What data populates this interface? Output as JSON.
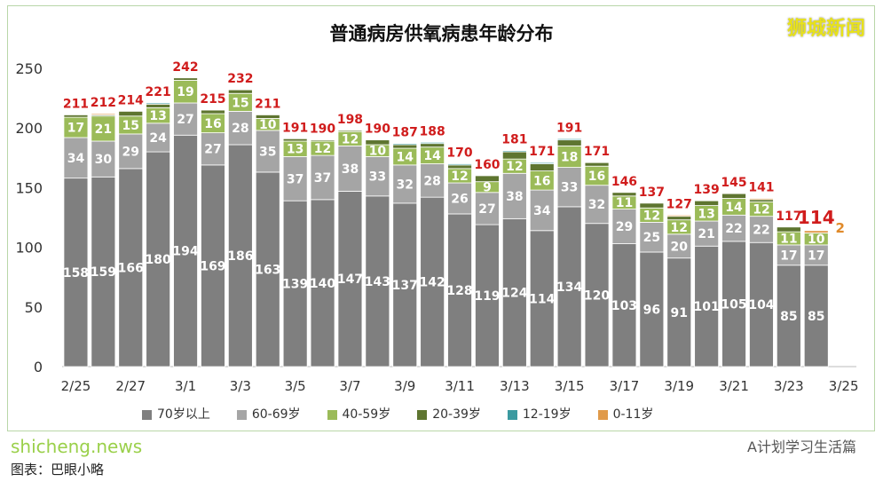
{
  "chart_data": {
    "type": "bar",
    "stacked": true,
    "title": "普通病房供氧病患年龄分布",
    "categories": [
      "2/25",
      "2/26",
      "2/27",
      "2/28",
      "3/1",
      "3/2",
      "3/3",
      "3/4",
      "3/5",
      "3/6",
      "3/7",
      "3/8",
      "3/9",
      "3/10",
      "3/11",
      "3/12",
      "3/13",
      "3/14",
      "3/15",
      "3/16",
      "3/17",
      "3/18",
      "3/19",
      "3/20",
      "3/21",
      "3/22",
      "3/23",
      "3/24"
    ],
    "x_ticks": [
      "2/25",
      "2/27",
      "3/1",
      "3/3",
      "3/5",
      "3/7",
      "3/9",
      "3/11",
      "3/13",
      "3/15",
      "3/17",
      "3/19",
      "3/21",
      "3/23",
      "3/25"
    ],
    "y_ticks": [
      0,
      50,
      100,
      150,
      200,
      250
    ],
    "ylim": [
      0,
      250
    ],
    "series": [
      {
        "name": "70岁以上",
        "color": "#7f7f7f",
        "values": [
          158,
          159,
          166,
          180,
          194,
          169,
          186,
          163,
          139,
          140,
          147,
          143,
          137,
          142,
          128,
          119,
          124,
          114,
          134,
          120,
          103,
          96,
          91,
          101,
          105,
          104,
          85,
          85
        ]
      },
      {
        "name": "60-69岁",
        "color": "#a5a5a5",
        "values": [
          34,
          30,
          29,
          24,
          27,
          27,
          28,
          35,
          37,
          37,
          38,
          33,
          32,
          28,
          26,
          27,
          38,
          34,
          33,
          32,
          29,
          25,
          20,
          21,
          22,
          22,
          17,
          17
        ]
      },
      {
        "name": "40-59岁",
        "color": "#9bbb59",
        "values": [
          17,
          21,
          15,
          13,
          19,
          16,
          15,
          10,
          13,
          12,
          12,
          10,
          14,
          14,
          12,
          9,
          12,
          16,
          18,
          16,
          11,
          12,
          12,
          13,
          14,
          12,
          11,
          10
        ]
      },
      {
        "name": "20-39岁",
        "color": "#5e7530",
        "values": [
          2,
          1,
          4,
          3,
          2,
          3,
          3,
          3,
          2,
          1,
          1,
          4,
          3,
          3,
          3,
          5,
          6,
          6,
          5,
          3,
          3,
          4,
          3,
          4,
          4,
          2,
          4,
          0
        ]
      },
      {
        "name": "12-19岁",
        "color": "#3b9aa0",
        "values": [
          0,
          0,
          0,
          1,
          0,
          0,
          0,
          0,
          0,
          0,
          0,
          0,
          1,
          1,
          1,
          0,
          1,
          1,
          1,
          0,
          0,
          0,
          0,
          0,
          0,
          0,
          0,
          0
        ]
      },
      {
        "name": "0-11岁",
        "color": "#e09a4a",
        "values": [
          0,
          1,
          0,
          0,
          0,
          0,
          0,
          0,
          0,
          0,
          0,
          0,
          0,
          0,
          0,
          0,
          0,
          0,
          0,
          0,
          0,
          0,
          1,
          0,
          0,
          1,
          0,
          2
        ]
      }
    ],
    "totals": [
      211,
      212,
      214,
      221,
      242,
      215,
      232,
      211,
      191,
      190,
      198,
      190,
      187,
      188,
      170,
      160,
      181,
      171,
      191,
      171,
      146,
      137,
      127,
      139,
      145,
      141,
      117,
      114
    ],
    "last_extra_label": "2",
    "legend_position": "bottom"
  },
  "watermark": "狮城新闻",
  "footer": "图表：巴眼小略",
  "site": "shicheng.news",
  "account": "A计划学习生活篇"
}
